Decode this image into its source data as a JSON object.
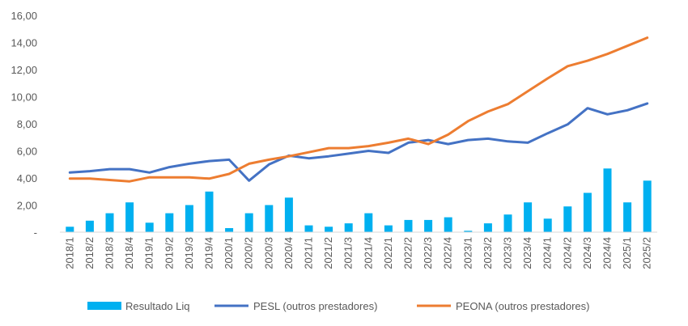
{
  "chart_data": {
    "type": "bar+line",
    "categories": [
      "2018/1",
      "2018/2",
      "2018/3",
      "2018/4",
      "2019/1",
      "2019/2",
      "2019/3",
      "2019/4",
      "2020/1",
      "2020/2",
      "2020/3",
      "2020/4",
      "2021/1",
      "2021/2",
      "2021/3",
      "2021/4",
      "2022/1",
      "2022/2",
      "2022/3",
      "2022/4",
      "2023/1",
      "2023/2",
      "2023/3",
      "2023/4",
      "2024/1",
      "2024/2",
      "2024/3",
      "2024/4",
      "2025/1",
      "2025/2"
    ],
    "ylim": [
      0,
      16
    ],
    "yticks": [
      "-",
      "2,00",
      "4,00",
      "6,00",
      "8,00",
      "10,00",
      "12,00",
      "14,00",
      "16,00"
    ],
    "ytick_values": [
      0,
      2,
      4,
      6,
      8,
      10,
      12,
      14,
      16
    ],
    "grid": false,
    "legend_position": "bottom",
    "series": [
      {
        "name": "Resultado Liq",
        "kind": "bar",
        "color": "#00B0F0",
        "values": [
          0.4,
          0.85,
          1.4,
          2.2,
          0.7,
          1.4,
          2.0,
          3.0,
          0.3,
          1.4,
          2.0,
          2.55,
          0.5,
          0.4,
          0.65,
          1.4,
          0.5,
          0.9,
          0.9,
          1.1,
          0.1,
          0.65,
          1.3,
          2.2,
          1.0,
          1.9,
          2.9,
          4.7,
          2.2,
          3.8
        ]
      },
      {
        "name": "PESL (outros prestadores)",
        "kind": "line",
        "color": "#4472C4",
        "values": [
          4.4,
          4.5,
          4.65,
          4.65,
          4.4,
          4.8,
          5.05,
          5.25,
          5.35,
          3.8,
          5.0,
          5.65,
          5.45,
          5.6,
          5.8,
          6.0,
          5.85,
          6.6,
          6.8,
          6.5,
          6.8,
          6.9,
          6.7,
          6.6,
          7.3,
          7.95,
          9.15,
          8.7,
          9.0,
          9.5
        ]
      },
      {
        "name": "PEONA (outros prestadores)",
        "kind": "line",
        "color": "#ED7D31",
        "values": [
          3.95,
          3.95,
          3.85,
          3.75,
          4.05,
          4.05,
          4.05,
          3.95,
          4.3,
          5.05,
          5.35,
          5.6,
          5.9,
          6.2,
          6.2,
          6.35,
          6.6,
          6.9,
          6.5,
          7.2,
          8.2,
          8.9,
          9.45,
          10.4,
          11.35,
          12.25,
          12.65,
          13.15,
          13.75,
          14.35
        ]
      }
    ]
  }
}
